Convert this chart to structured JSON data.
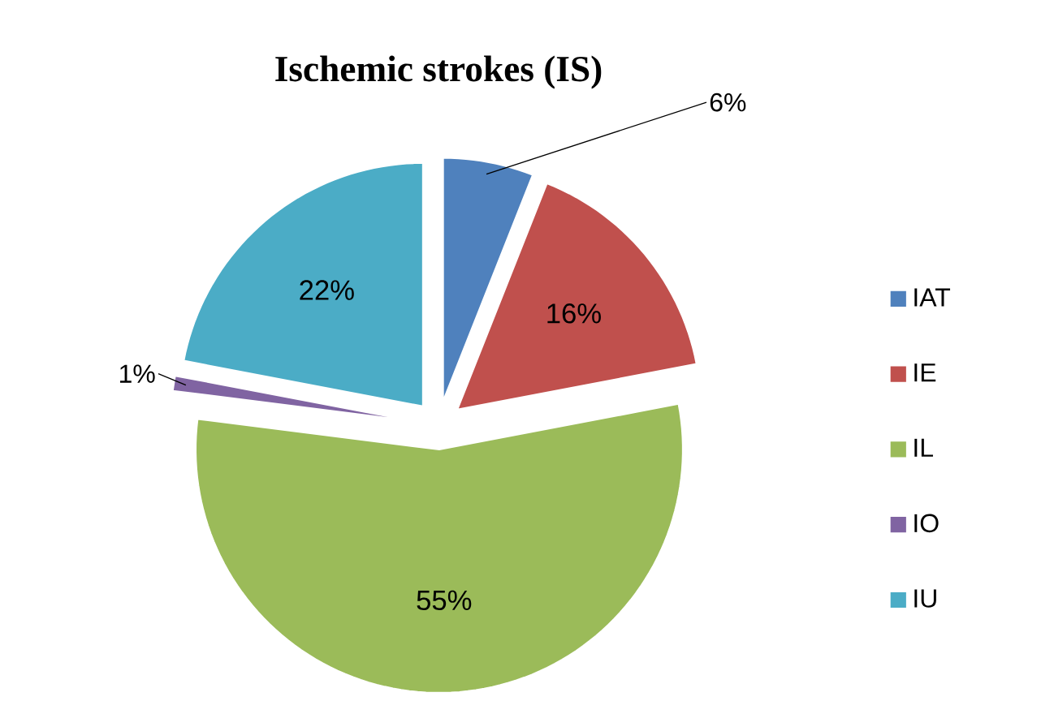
{
  "chart_data": {
    "type": "pie",
    "title": "Ischemic strokes (IS)",
    "categories": [
      "IAT",
      "IE",
      "IL",
      "IO",
      "IU"
    ],
    "values": [
      6,
      16,
      55,
      1,
      22
    ],
    "value_labels": [
      "6%",
      "16%",
      "55%",
      "1%",
      "22%"
    ],
    "colors": [
      "#4f81bd",
      "#c0504d",
      "#9bbb59",
      "#8064a2",
      "#4bacc6"
    ],
    "legend": "right"
  }
}
